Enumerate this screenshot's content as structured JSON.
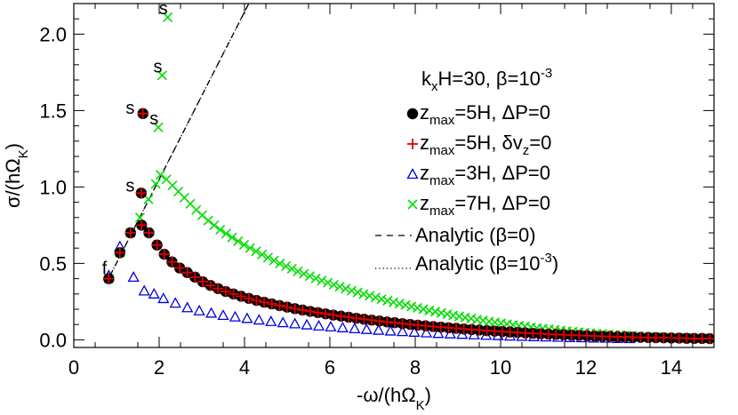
{
  "chart_data": {
    "type": "scatter",
    "xlabel": "-ω/(hΩK)",
    "ylabel": "σ/(hΩK)",
    "xlim": [
      0,
      15
    ],
    "ylim": [
      -0.05,
      2.2
    ],
    "xticks": [
      "0",
      "2",
      "4",
      "6",
      "8",
      "10",
      "12",
      "14"
    ],
    "yticks": [
      "0.0",
      "0.5",
      "1.0",
      "1.5",
      "2.0"
    ],
    "legend_position": "top-right",
    "legend_title": "kxH=30, β=10-3",
    "series": [
      {
        "name": "zmax=5H, ΔP=0",
        "marker": "filled-circle",
        "color": "#000000",
        "x": [
          0.82,
          1.08,
          1.33,
          1.59,
          1.76,
          1.95,
          2.12,
          2.3,
          2.48,
          2.66,
          2.84,
          3.02,
          3.2,
          3.38,
          3.56,
          3.74,
          3.92,
          4.1,
          4.28,
          4.46,
          4.64,
          4.82,
          5.0,
          5.18,
          5.36,
          5.54,
          5.72,
          5.9,
          6.08,
          6.26,
          6.44,
          6.62,
          6.8,
          6.98,
          7.16,
          7.34,
          7.52,
          7.7,
          7.88,
          8.06,
          8.24,
          8.42,
          8.6,
          8.78,
          8.96,
          9.14,
          9.32,
          9.5,
          9.68,
          9.86,
          10.04,
          10.22,
          10.4,
          10.58,
          10.76,
          10.94,
          11.12,
          11.3,
          11.48,
          11.66,
          11.84,
          12.02,
          12.2,
          12.38,
          12.56,
          12.74,
          12.92,
          13.1,
          13.28,
          13.46,
          13.64,
          13.82,
          14.0,
          14.18,
          14.36,
          14.54,
          14.72,
          14.9
        ],
        "y": [
          0.4,
          0.57,
          0.7,
          0.75,
          0.7,
          0.62,
          0.56,
          0.51,
          0.47,
          0.44,
          0.41,
          0.38,
          0.356,
          0.335,
          0.316,
          0.3,
          0.285,
          0.271,
          0.258,
          0.246,
          0.235,
          0.224,
          0.214,
          0.204,
          0.195,
          0.186,
          0.178,
          0.17,
          0.162,
          0.155,
          0.148,
          0.141,
          0.135,
          0.129,
          0.123,
          0.117,
          0.112,
          0.106,
          0.101,
          0.096,
          0.092,
          0.087,
          0.083,
          0.079,
          0.075,
          0.071,
          0.067,
          0.064,
          0.06,
          0.057,
          0.054,
          0.051,
          0.048,
          0.045,
          0.042,
          0.04,
          0.037,
          0.035,
          0.033,
          0.031,
          0.029,
          0.027,
          0.025,
          0.023,
          0.022,
          0.02,
          0.019,
          0.017,
          0.016,
          0.015,
          0.014,
          0.013,
          0.012,
          0.011,
          0.01,
          0.009,
          0.009,
          0.008
        ],
        "extra_points": {
          "x": [
            1.58,
            1.62
          ],
          "y": [
            0.96,
            1.48
          ]
        }
      },
      {
        "name": "zmax=5H, δvz=0",
        "marker": "plus",
        "color": "#e00000"
      },
      {
        "name": "zmax=3H, ΔP=0",
        "marker": "open-triangle",
        "color": "#0000e0",
        "x": [
          0.82,
          1.08,
          1.4,
          1.65,
          1.88,
          2.1,
          2.38,
          2.66,
          2.94,
          3.22,
          3.5,
          3.78,
          4.06,
          4.34,
          4.62,
          4.9,
          5.18,
          5.46,
          5.74,
          6.02,
          6.3,
          6.58,
          6.86,
          7.14,
          7.42,
          7.7,
          7.98,
          8.26,
          8.54,
          8.82,
          9.1,
          9.38,
          9.66,
          9.94,
          10.22,
          10.5,
          10.78,
          11.06,
          11.34,
          11.62,
          11.9,
          12.18,
          12.46,
          12.74,
          13.02
        ],
        "y": [
          0.42,
          0.61,
          0.41,
          0.32,
          0.3,
          0.27,
          0.24,
          0.21,
          0.19,
          0.175,
          0.16,
          0.15,
          0.14,
          0.13,
          0.12,
          0.112,
          0.105,
          0.098,
          0.091,
          0.085,
          0.079,
          0.073,
          0.068,
          0.063,
          0.058,
          0.054,
          0.05,
          0.046,
          0.042,
          0.039,
          0.036,
          0.033,
          0.03,
          0.028,
          0.025,
          0.023,
          0.021,
          0.019,
          0.017,
          0.015,
          0.014,
          0.012,
          0.011,
          0.009,
          0.008
        ]
      },
      {
        "name": "zmax=7H, ΔP=0",
        "marker": "x",
        "color": "#00dd00",
        "x": [
          0.82,
          1.08,
          1.33,
          1.55,
          1.75,
          1.92,
          2.03,
          2.17,
          2.31,
          2.45,
          2.59,
          2.73,
          2.87,
          3.01,
          3.15,
          3.29,
          3.43,
          3.57,
          3.71,
          3.85,
          3.99,
          4.13,
          4.27,
          4.41,
          4.55,
          4.69,
          4.83,
          4.97,
          5.11,
          5.25,
          5.39,
          5.53,
          5.67,
          5.81,
          5.95,
          6.09,
          6.23,
          6.37,
          6.51,
          6.65,
          6.79,
          6.93,
          7.07,
          7.21,
          7.35,
          7.49,
          7.63,
          7.77,
          7.91,
          8.05,
          8.19,
          8.33,
          8.47,
          8.61,
          8.75,
          8.89,
          9.03,
          9.17,
          9.31,
          9.45,
          9.59,
          9.73,
          9.87,
          10.01,
          10.15,
          10.29,
          10.43,
          10.57,
          10.71,
          10.85,
          10.99,
          11.13,
          11.27,
          11.41,
          11.55,
          11.69,
          11.83,
          11.97,
          12.11,
          12.25,
          12.39,
          12.53,
          12.67,
          12.81,
          12.95,
          13.09,
          13.23,
          13.37,
          13.51,
          13.65,
          13.79,
          13.93,
          14.07,
          14.21,
          14.35,
          14.49,
          14.63,
          14.77,
          14.91
        ],
        "y": [
          0.4,
          0.57,
          0.7,
          0.8,
          0.92,
          1.02,
          1.08,
          1.05,
          1.01,
          0.97,
          0.93,
          0.89,
          0.85,
          0.815,
          0.78,
          0.75,
          0.72,
          0.695,
          0.67,
          0.645,
          0.622,
          0.6,
          0.579,
          0.558,
          0.538,
          0.519,
          0.5,
          0.482,
          0.465,
          0.448,
          0.432,
          0.417,
          0.402,
          0.388,
          0.374,
          0.36,
          0.347,
          0.335,
          0.322,
          0.31,
          0.299,
          0.288,
          0.277,
          0.266,
          0.256,
          0.246,
          0.237,
          0.227,
          0.218,
          0.209,
          0.2,
          0.192,
          0.184,
          0.176,
          0.168,
          0.16,
          0.153,
          0.146,
          0.139,
          0.132,
          0.126,
          0.12,
          0.114,
          0.108,
          0.102,
          0.097,
          0.092,
          0.087,
          0.082,
          0.077,
          0.073,
          0.069,
          0.065,
          0.061,
          0.057,
          0.053,
          0.05,
          0.047,
          0.044,
          0.041,
          0.038,
          0.035,
          0.033,
          0.031,
          0.029,
          0.027,
          0.025,
          0.023,
          0.021,
          0.019,
          0.018,
          0.016,
          0.015,
          0.014,
          0.013,
          0.012,
          0.011,
          0.01,
          0.009
        ],
        "extra_points": {
          "x": [
            1.98,
            2.07,
            2.2
          ],
          "y": [
            1.39,
            1.73,
            2.11
          ]
        }
      },
      {
        "name": "Analytic (β=0)",
        "line": "dashed",
        "color": "#000000",
        "x": [
          0.85,
          4.1
        ],
        "y": [
          0.42,
          2.2
        ]
      },
      {
        "name": "Analytic (β=10-3)",
        "line": "dotted",
        "color": "#000000",
        "x": [
          0.85,
          4.1
        ],
        "y": [
          0.42,
          2.2
        ]
      }
    ],
    "annotations": [
      {
        "text": "f",
        "x": 0.72,
        "y": 0.43
      },
      {
        "text": "s",
        "x": 1.32,
        "y": 1.48
      },
      {
        "text": "s",
        "x": 1.32,
        "y": 0.97
      },
      {
        "text": "s",
        "x": 1.88,
        "y": 1.41
      },
      {
        "text": "s",
        "x": 1.97,
        "y": 1.75
      },
      {
        "text": "s",
        "x": 2.1,
        "y": 2.13
      }
    ]
  }
}
